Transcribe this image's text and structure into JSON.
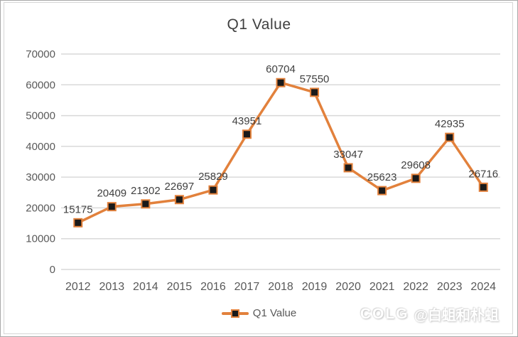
{
  "chart_data": {
    "type": "line",
    "title": "Q1 Value",
    "categories": [
      "2012",
      "2013",
      "2014",
      "2015",
      "2016",
      "2017",
      "2018",
      "2019",
      "2020",
      "2021",
      "2022",
      "2023",
      "2024"
    ],
    "series": [
      {
        "name": "Q1 Value",
        "values": [
          15175,
          20409,
          21302,
          22697,
          25829,
          43951,
          60704,
          57550,
          33047,
          25623,
          29608,
          42935,
          26716
        ]
      }
    ],
    "xlabel": "",
    "ylabel": "",
    "ylim": [
      0,
      70000
    ],
    "yticks": [
      0,
      10000,
      20000,
      30000,
      40000,
      50000,
      60000,
      70000
    ],
    "grid": true,
    "data_labels": true,
    "legend_position": "bottom",
    "marker": "square"
  },
  "legend": {
    "label": "Q1 Value"
  },
  "watermark": {
    "logo": "COLG",
    "handle": "@白蛆和朴蛆"
  },
  "colors": {
    "line": "#e2813c",
    "marker_fill": "#1a1a1a",
    "marker_stroke": "#e2813c",
    "gridline": "#d9d9d9",
    "axis_label": "#595959",
    "data_label": "#404040",
    "title": "#3f3f3f"
  }
}
